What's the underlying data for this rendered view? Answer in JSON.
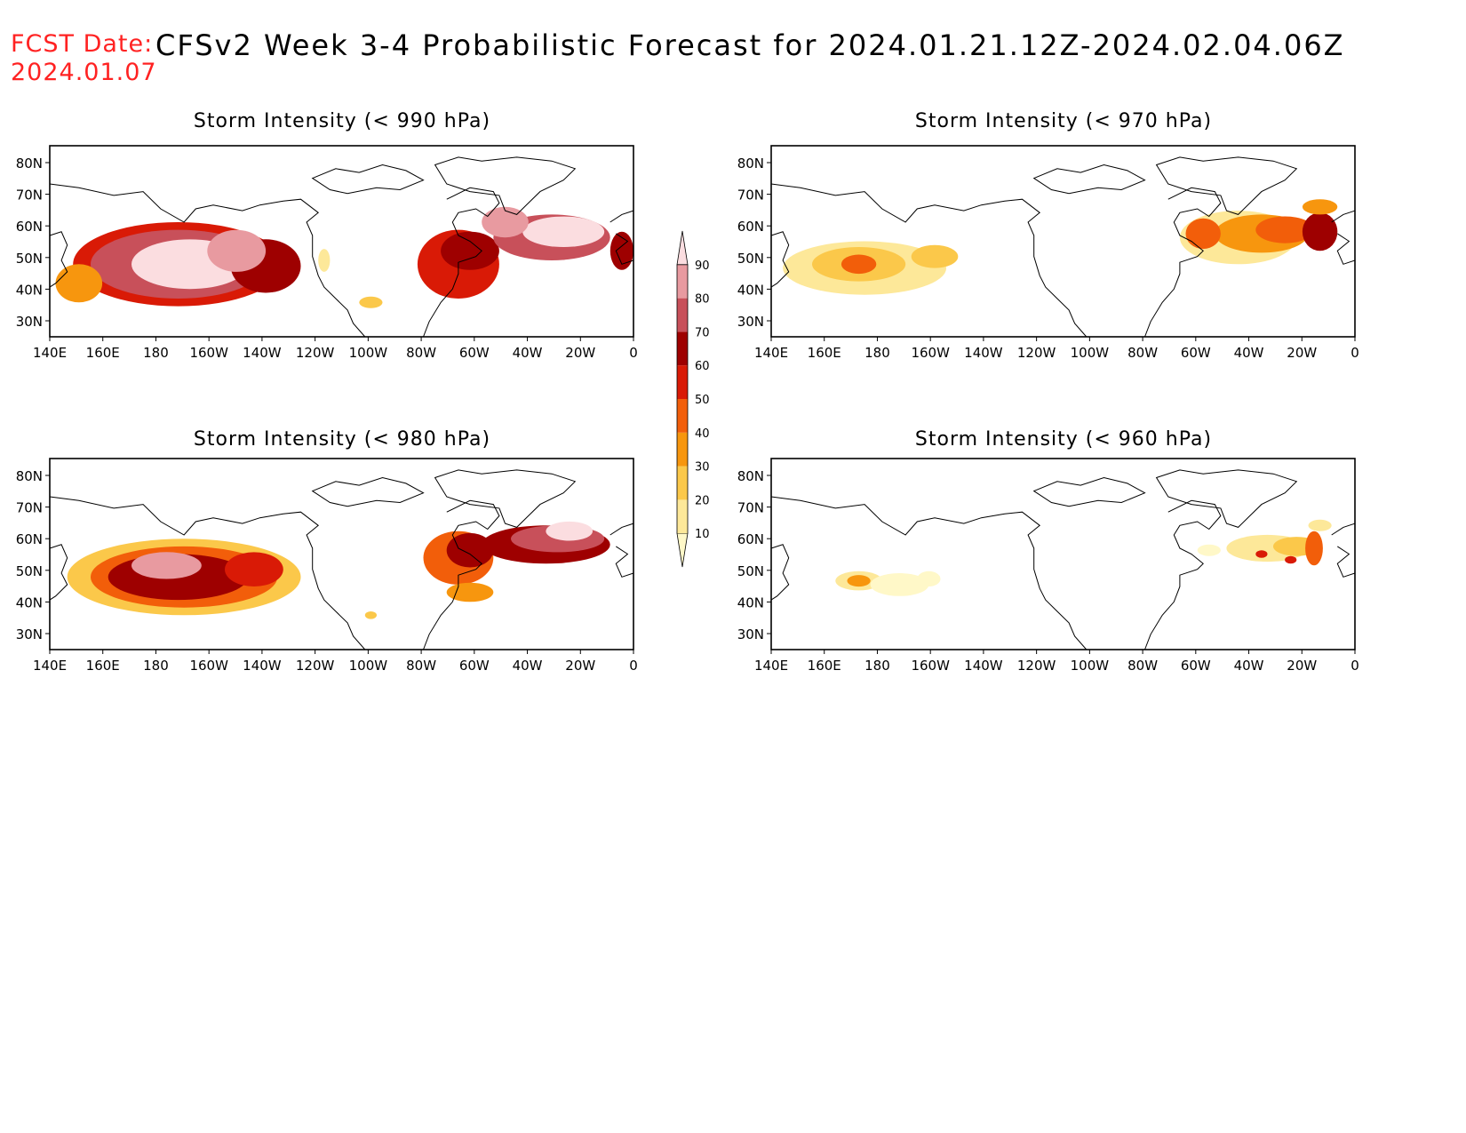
{
  "header": {
    "fcst_label": "FCST Date:",
    "fcst_date": "2024.01.07",
    "title": "CFSv2 Week 3-4 Probabilistic Forecast for 2024.01.21.12Z-2024.02.04.06Z"
  },
  "axes": {
    "lon_labels": [
      "140E",
      "160E",
      "180",
      "160W",
      "140W",
      "120W",
      "100W",
      "80W",
      "60W",
      "40W",
      "20W",
      "0"
    ],
    "lat_labels": [
      "80N",
      "70N",
      "60N",
      "50N",
      "40N",
      "30N"
    ]
  },
  "panels": [
    {
      "id": "p990",
      "title": "Storm Intensity (< 990 hPa)"
    },
    {
      "id": "p970",
      "title": "Storm Intensity (< 970 hPa)"
    },
    {
      "id": "p980",
      "title": "Storm Intensity (< 980 hPa)"
    },
    {
      "id": "p960",
      "title": "Storm Intensity (< 960 hPa)"
    }
  ],
  "colorbar": {
    "levels": [
      "10",
      "20",
      "30",
      "40",
      "50",
      "60",
      "70",
      "80",
      "90"
    ],
    "colors": [
      "#fff8c8",
      "#fde899",
      "#fbc84a",
      "#f7960e",
      "#f25e0a",
      "#d91a06",
      "#9e0000",
      "#c8505a",
      "#e89aa0",
      "#fbdde0"
    ]
  },
  "map_data": {
    "type": "probability-shading",
    "units": "%",
    "domain": {
      "lon": [
        "140E",
        "0"
      ],
      "lat": [
        "25N",
        "85N"
      ]
    }
  }
}
